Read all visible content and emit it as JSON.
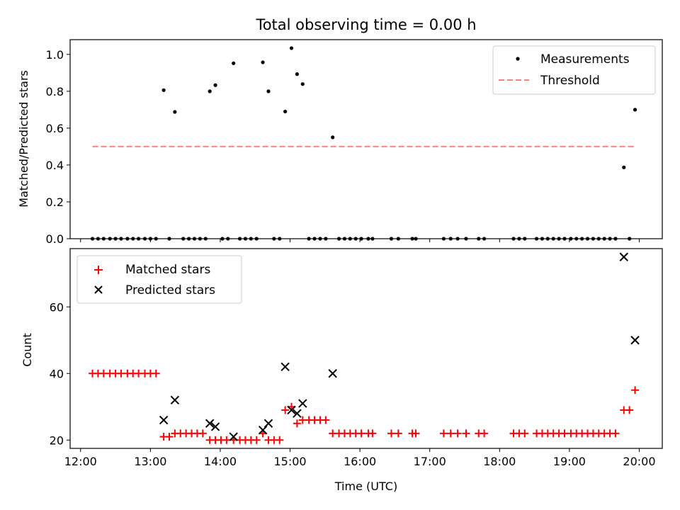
{
  "figure_title": "Total observing time = 0.00 h",
  "chart_data": [
    {
      "type": "scatter",
      "ylabel": "Matched/Predicted stars",
      "xlabel": "",
      "ylim": [
        0,
        1.08
      ],
      "xlim": [
        11.85,
        20.33
      ],
      "y_ticks": [
        0.0,
        0.2,
        0.4,
        0.6,
        0.8,
        1.0
      ],
      "y_tick_labels": [
        "0.0",
        "0.2",
        "0.4",
        "0.6",
        "0.8",
        "1.0"
      ],
      "legend": {
        "placement": "top-right",
        "entries": [
          "Measurements",
          "Threshold"
        ]
      },
      "series": [
        {
          "name": "Measurements",
          "marker": "dot",
          "color": "#000000",
          "points": [
            [
              12.17,
              0
            ],
            [
              12.25,
              0
            ],
            [
              12.33,
              0
            ],
            [
              12.42,
              0
            ],
            [
              12.5,
              0
            ],
            [
              12.58,
              0
            ],
            [
              12.67,
              0
            ],
            [
              12.75,
              0
            ],
            [
              12.83,
              0
            ],
            [
              12.92,
              0
            ],
            [
              13.0,
              0
            ],
            [
              13.08,
              0
            ],
            [
              13.19,
              0.806
            ],
            [
              13.27,
              0
            ],
            [
              13.35,
              0.688
            ],
            [
              13.47,
              0
            ],
            [
              13.55,
              0
            ],
            [
              13.63,
              0
            ],
            [
              13.71,
              0
            ],
            [
              13.79,
              0
            ],
            [
              13.85,
              0.8
            ],
            [
              13.93,
              0.833
            ],
            [
              14.03,
              0
            ],
            [
              14.11,
              0
            ],
            [
              14.19,
              0.952
            ],
            [
              14.28,
              0
            ],
            [
              14.36,
              0
            ],
            [
              14.44,
              0
            ],
            [
              14.52,
              0
            ],
            [
              14.61,
              0.957
            ],
            [
              14.69,
              0.8
            ],
            [
              14.77,
              0
            ],
            [
              14.85,
              0
            ],
            [
              14.93,
              0.69
            ],
            [
              15.02,
              1.034
            ],
            [
              15.1,
              0.893
            ],
            [
              15.18,
              0.839
            ],
            [
              15.27,
              0
            ],
            [
              15.35,
              0
            ],
            [
              15.43,
              0
            ],
            [
              15.51,
              0
            ],
            [
              15.61,
              0.55
            ],
            [
              15.7,
              0
            ],
            [
              15.78,
              0
            ],
            [
              15.86,
              0
            ],
            [
              15.94,
              0
            ],
            [
              16.02,
              0
            ],
            [
              16.12,
              0
            ],
            [
              16.18,
              0
            ],
            [
              16.45,
              0
            ],
            [
              16.55,
              0
            ],
            [
              16.75,
              0
            ],
            [
              16.8,
              0
            ],
            [
              17.2,
              0
            ],
            [
              17.3,
              0
            ],
            [
              17.4,
              0
            ],
            [
              17.52,
              0
            ],
            [
              17.7,
              0
            ],
            [
              17.78,
              0
            ],
            [
              18.2,
              0
            ],
            [
              18.28,
              0
            ],
            [
              18.36,
              0
            ],
            [
              18.53,
              0
            ],
            [
              18.61,
              0
            ],
            [
              18.69,
              0
            ],
            [
              18.77,
              0
            ],
            [
              18.85,
              0
            ],
            [
              18.93,
              0
            ],
            [
              19.02,
              0
            ],
            [
              19.1,
              0
            ],
            [
              19.18,
              0
            ],
            [
              19.26,
              0
            ],
            [
              19.34,
              0
            ],
            [
              19.42,
              0
            ],
            [
              19.5,
              0
            ],
            [
              19.58,
              0
            ],
            [
              19.66,
              0
            ],
            [
              19.78,
              0.387
            ],
            [
              19.86,
              0
            ],
            [
              19.94,
              0.7
            ]
          ]
        },
        {
          "name": "Threshold",
          "style": "dashed",
          "color": "#ff7f7f",
          "points": [
            [
              12.17,
              0.5
            ],
            [
              19.94,
              0.5
            ]
          ]
        }
      ]
    },
    {
      "type": "scatter",
      "ylabel": "Count",
      "xlabel": "Time (UTC)",
      "ylim": [
        17.5,
        77.5
      ],
      "xlim": [
        11.85,
        20.33
      ],
      "y_ticks": [
        20,
        40,
        60
      ],
      "y_tick_labels": [
        "20",
        "40",
        "60"
      ],
      "x_ticks": [
        12,
        13,
        14,
        15,
        16,
        17,
        18,
        19,
        20
      ],
      "x_tick_labels": [
        "12:00",
        "13:00",
        "14:00",
        "15:00",
        "16:00",
        "17:00",
        "18:00",
        "19:00",
        "20:00"
      ],
      "legend": {
        "placement": "top-left",
        "entries": [
          "Matched stars",
          "Predicted stars"
        ]
      },
      "series": [
        {
          "name": "Matched stars",
          "marker": "plus",
          "color": "#ff0000",
          "points": [
            [
              12.17,
              40
            ],
            [
              12.25,
              40
            ],
            [
              12.33,
              40
            ],
            [
              12.42,
              40
            ],
            [
              12.5,
              40
            ],
            [
              12.58,
              40
            ],
            [
              12.67,
              40
            ],
            [
              12.75,
              40
            ],
            [
              12.83,
              40
            ],
            [
              12.92,
              40
            ],
            [
              13.0,
              40
            ],
            [
              13.08,
              40
            ],
            [
              13.19,
              21
            ],
            [
              13.27,
              21
            ],
            [
              13.35,
              22
            ],
            [
              13.43,
              22
            ],
            [
              13.51,
              22
            ],
            [
              13.59,
              22
            ],
            [
              13.67,
              22
            ],
            [
              13.75,
              22
            ],
            [
              13.85,
              20
            ],
            [
              13.93,
              20
            ],
            [
              14.01,
              20
            ],
            [
              14.09,
              20
            ],
            [
              14.19,
              20
            ],
            [
              14.28,
              20
            ],
            [
              14.36,
              20
            ],
            [
              14.44,
              20
            ],
            [
              14.52,
              20
            ],
            [
              14.61,
              22
            ],
            [
              14.69,
              20
            ],
            [
              14.77,
              20
            ],
            [
              14.85,
              20
            ],
            [
              14.93,
              29
            ],
            [
              15.02,
              30
            ],
            [
              15.1,
              25
            ],
            [
              15.18,
              26
            ],
            [
              15.27,
              26
            ],
            [
              15.35,
              26
            ],
            [
              15.43,
              26
            ],
            [
              15.51,
              26
            ],
            [
              15.61,
              22
            ],
            [
              15.7,
              22
            ],
            [
              15.78,
              22
            ],
            [
              15.86,
              22
            ],
            [
              15.94,
              22
            ],
            [
              16.02,
              22
            ],
            [
              16.12,
              22
            ],
            [
              16.18,
              22
            ],
            [
              16.45,
              22
            ],
            [
              16.55,
              22
            ],
            [
              16.75,
              22
            ],
            [
              16.8,
              22
            ],
            [
              17.2,
              22
            ],
            [
              17.3,
              22
            ],
            [
              17.4,
              22
            ],
            [
              17.52,
              22
            ],
            [
              17.7,
              22
            ],
            [
              17.78,
              22
            ],
            [
              18.2,
              22
            ],
            [
              18.28,
              22
            ],
            [
              18.36,
              22
            ],
            [
              18.53,
              22
            ],
            [
              18.61,
              22
            ],
            [
              18.69,
              22
            ],
            [
              18.77,
              22
            ],
            [
              18.85,
              22
            ],
            [
              18.93,
              22
            ],
            [
              19.02,
              22
            ],
            [
              19.1,
              22
            ],
            [
              19.18,
              22
            ],
            [
              19.26,
              22
            ],
            [
              19.34,
              22
            ],
            [
              19.42,
              22
            ],
            [
              19.5,
              22
            ],
            [
              19.58,
              22
            ],
            [
              19.66,
              22
            ],
            [
              19.78,
              29
            ],
            [
              19.86,
              29
            ],
            [
              19.94,
              35
            ]
          ]
        },
        {
          "name": "Predicted stars",
          "marker": "x",
          "color": "#000000",
          "points": [
            [
              13.19,
              26
            ],
            [
              13.35,
              32
            ],
            [
              13.85,
              25
            ],
            [
              13.93,
              24
            ],
            [
              14.19,
              21
            ],
            [
              14.61,
              23
            ],
            [
              14.69,
              25
            ],
            [
              14.93,
              42
            ],
            [
              15.02,
              29
            ],
            [
              15.1,
              28
            ],
            [
              15.18,
              31
            ],
            [
              15.61,
              40
            ],
            [
              19.78,
              75
            ],
            [
              19.94,
              50
            ]
          ]
        }
      ]
    }
  ]
}
